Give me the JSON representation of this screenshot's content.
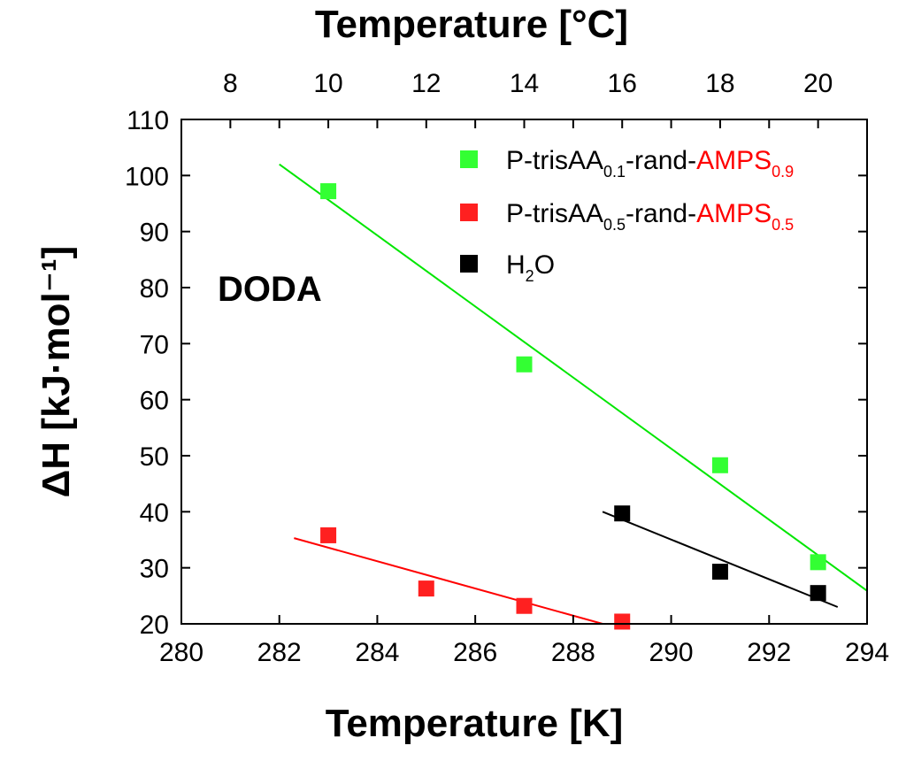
{
  "chart_data": {
    "type": "scatter",
    "x_axis": {
      "label": "Temperature [K]",
      "min": 280,
      "max": 294,
      "ticks": [
        280,
        282,
        284,
        286,
        288,
        290,
        292,
        294
      ],
      "tick_labels": [
        "280",
        "282",
        "284",
        "286",
        "288",
        "290",
        "292",
        "294"
      ]
    },
    "top_axis": {
      "label": "Temperature [°C]",
      "ticks": [
        8,
        10,
        12,
        14,
        16,
        18,
        20
      ],
      "tick_labels": [
        "8",
        "10",
        "12",
        "14",
        "16",
        "18",
        "20"
      ],
      "offset_k": 273
    },
    "y_axis": {
      "label": "ΔH [kJ·mol⁻¹]",
      "min": 20,
      "max": 110,
      "ticks": [
        20,
        30,
        40,
        50,
        60,
        70,
        80,
        90,
        100,
        110
      ],
      "tick_labels": [
        "20",
        "30",
        "40",
        "50",
        "60",
        "70",
        "80",
        "90",
        "100",
        "110"
      ]
    },
    "annotation": "DODA",
    "series": [
      {
        "name": "P-trisAA0.1-rand-AMPS0.9",
        "color": "#00e600",
        "marker_fill": "#33ff33",
        "legend_parts": [
          {
            "text": "P-trisAA",
            "color": "#000000",
            "sub": false
          },
          {
            "text": "0.1",
            "color": "#000000",
            "sub": true
          },
          {
            "text": "-rand-",
            "color": "#000000",
            "sub": false
          },
          {
            "text": "AMPS",
            "color": "#ff0000",
            "sub": false
          },
          {
            "text": "0.9",
            "color": "#ff0000",
            "sub": true
          }
        ],
        "points": [
          [
            283,
            97.2
          ],
          [
            287,
            66.3
          ],
          [
            291,
            48.3
          ],
          [
            293,
            31.0
          ]
        ],
        "fit": [
          [
            282,
            102
          ],
          [
            294,
            25.9
          ]
        ]
      },
      {
        "name": "P-trisAA0.5-rand-AMPS0.5",
        "color": "#ff0000",
        "marker_fill": "#ff2020",
        "legend_parts": [
          {
            "text": "P-trisAA",
            "color": "#000000",
            "sub": false
          },
          {
            "text": "0.5",
            "color": "#000000",
            "sub": true
          },
          {
            "text": "-rand-",
            "color": "#000000",
            "sub": false
          },
          {
            "text": "AMPS",
            "color": "#ff0000",
            "sub": false
          },
          {
            "text": "0.5",
            "color": "#ff0000",
            "sub": true
          }
        ],
        "points": [
          [
            283,
            35.8
          ],
          [
            285,
            26.3
          ],
          [
            287,
            23.2
          ],
          [
            289,
            20.4
          ]
        ],
        "fit": [
          [
            282.3,
            35.3
          ],
          [
            288.6,
            20
          ]
        ]
      },
      {
        "name": "H2O",
        "color": "#000000",
        "marker_fill": "#000000",
        "legend_parts": [
          {
            "text": "H",
            "color": "#000000",
            "sub": false
          },
          {
            "text": "2",
            "color": "#000000",
            "sub": true
          },
          {
            "text": "O",
            "color": "#000000",
            "sub": false
          }
        ],
        "points": [
          [
            289,
            39.7
          ],
          [
            291,
            29.3
          ],
          [
            293,
            25.5
          ]
        ],
        "fit": [
          [
            288.6,
            40.0
          ],
          [
            293.4,
            23.0
          ]
        ]
      }
    ]
  }
}
